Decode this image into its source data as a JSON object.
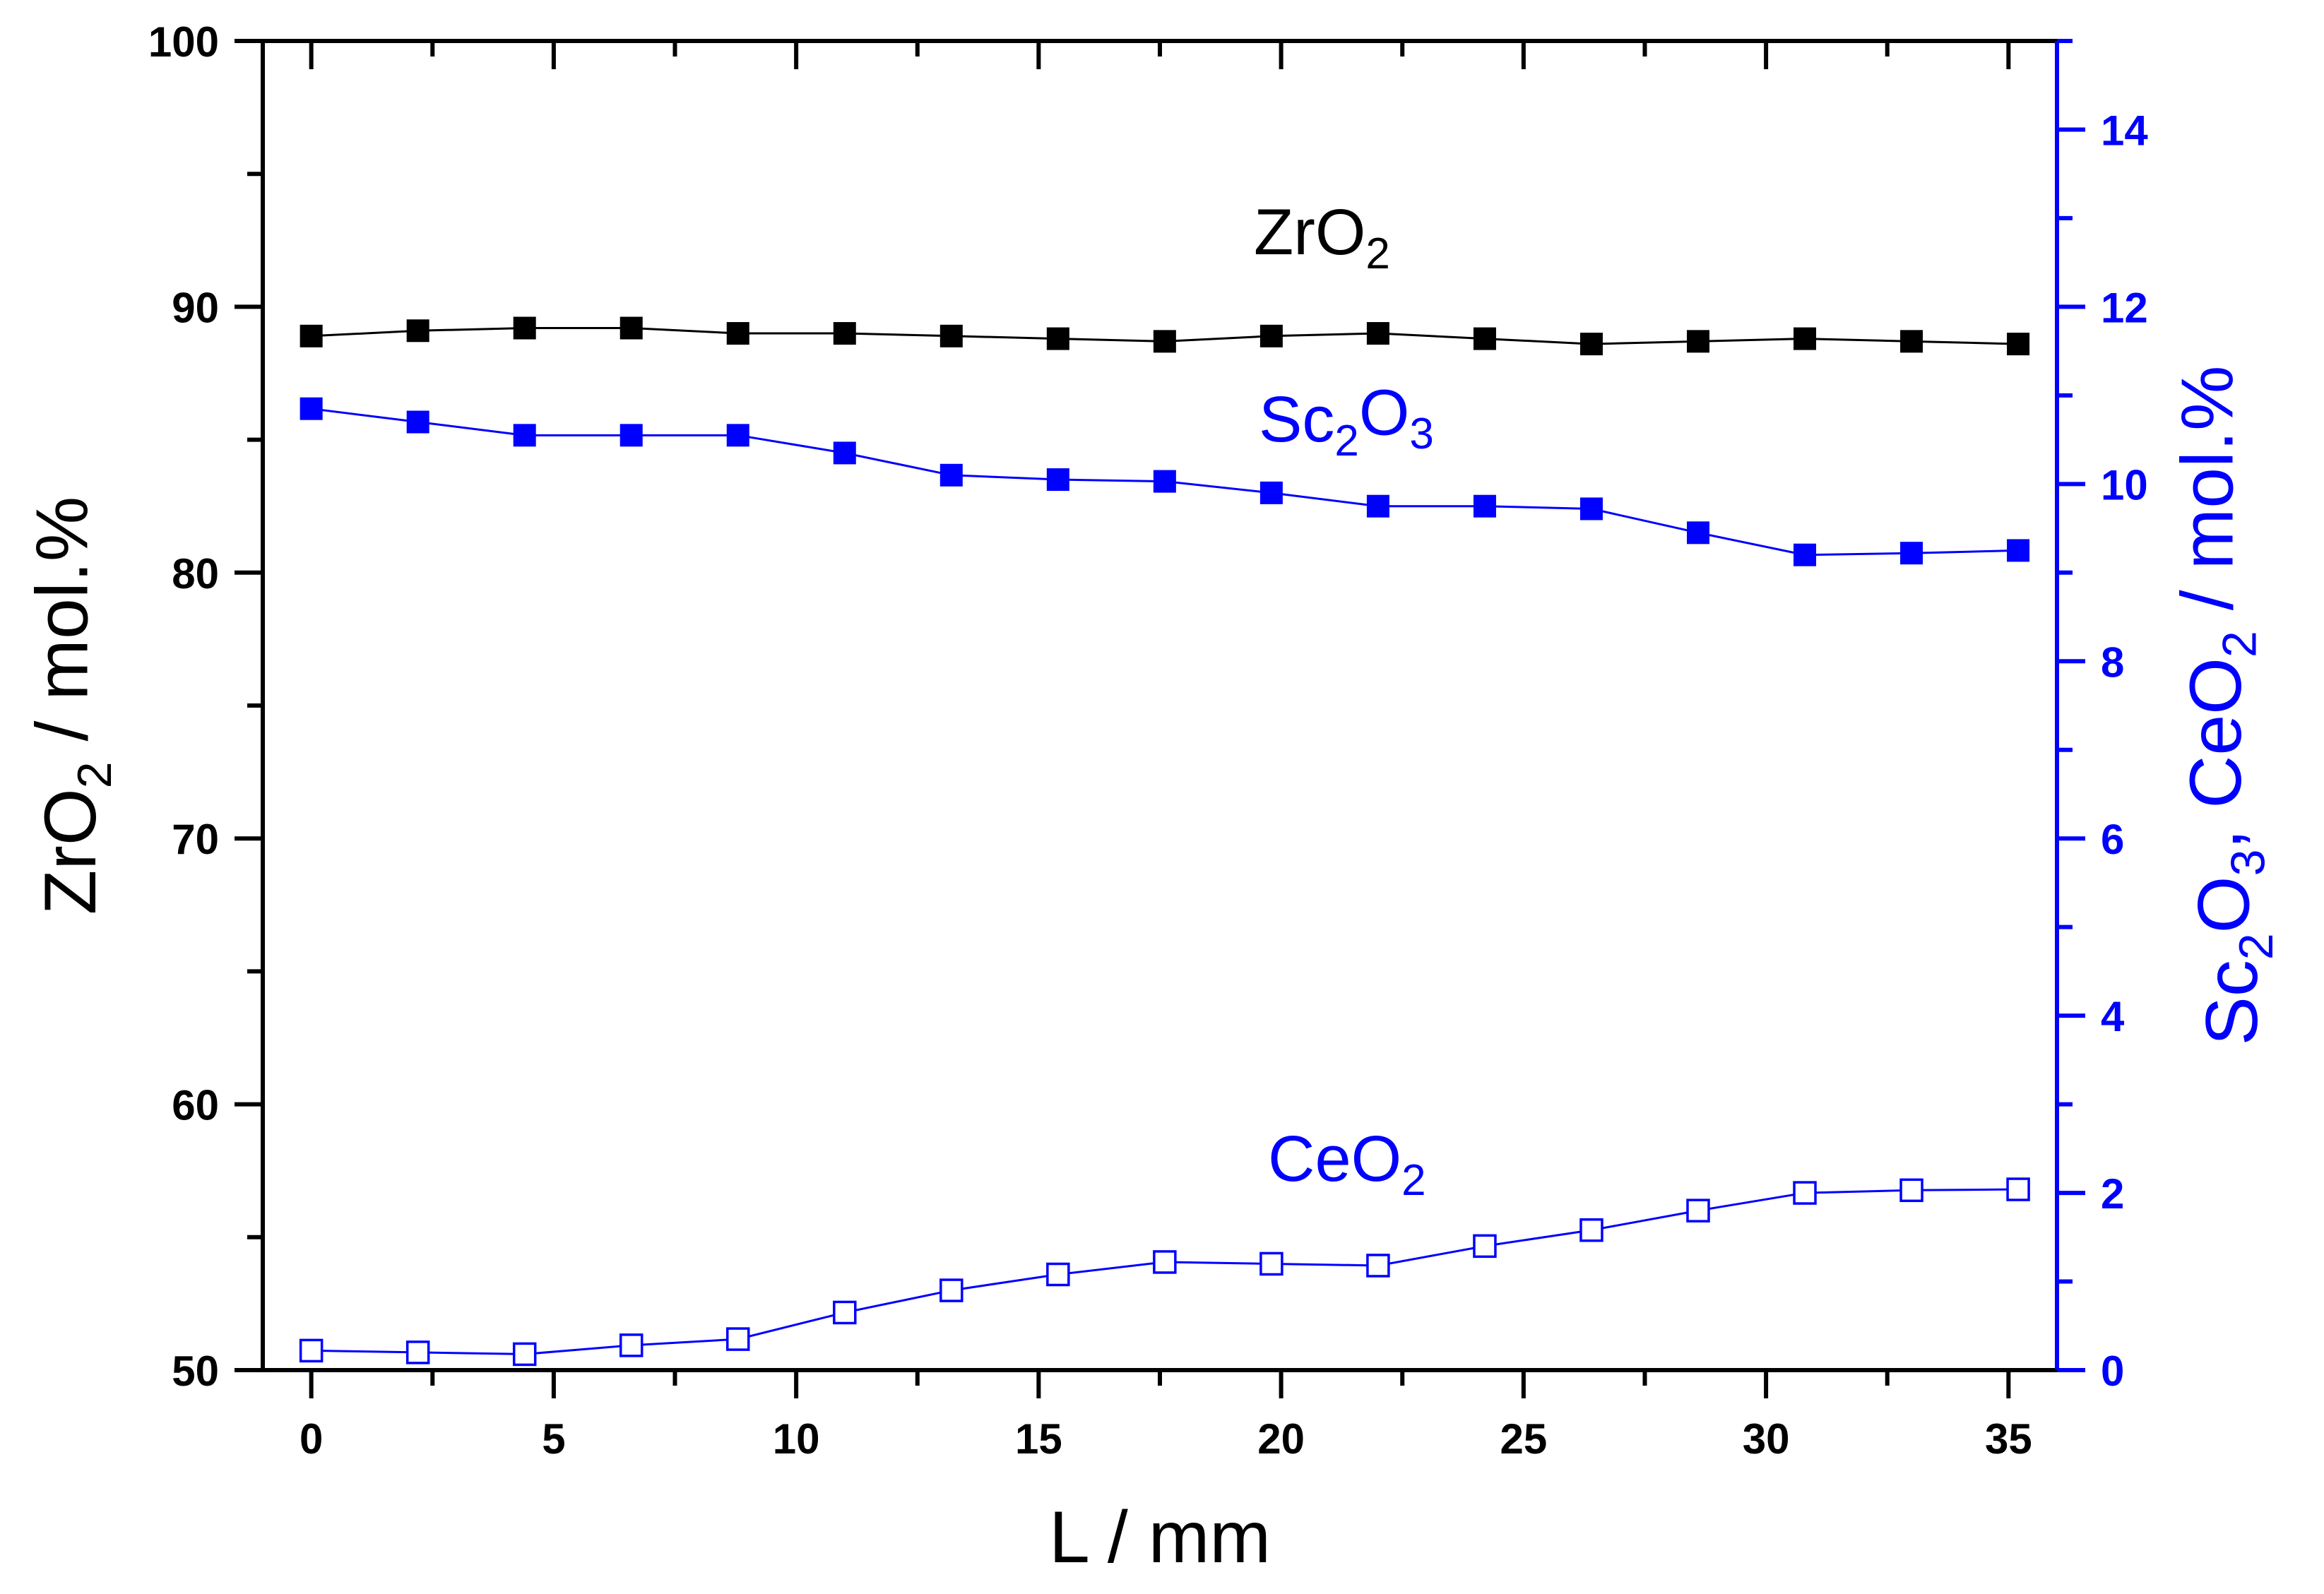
{
  "chart_data": {
    "type": "line",
    "title": "",
    "xlabel": "L / mm",
    "ylabel_left": {
      "parts": [
        {
          "t": "ZrO"
        },
        {
          "t": "2",
          "sub": true
        },
        {
          "t": " / mol.%"
        }
      ]
    },
    "ylabel_right": {
      "parts": [
        {
          "t": "Sc"
        },
        {
          "t": "2",
          "sub": true
        },
        {
          "t": "O"
        },
        {
          "t": "3",
          "sub": true
        },
        {
          "t": ", CeO"
        },
        {
          "t": "2",
          "sub": true
        },
        {
          "t": " / mol.%"
        }
      ]
    },
    "xlim": [
      -1,
      36
    ],
    "ylim_left": [
      50,
      100
    ],
    "ylim_right": [
      0,
      15
    ],
    "x_ticks": [
      0,
      5,
      10,
      15,
      20,
      25,
      30,
      35
    ],
    "y_left_ticks": [
      50,
      60,
      70,
      80,
      90,
      100
    ],
    "y_right_ticks": [
      0,
      2,
      4,
      6,
      8,
      10,
      12,
      14
    ],
    "x": [
      0,
      2.2,
      4.4,
      6.6,
      8.8,
      11.0,
      13.2,
      15.4,
      17.6,
      19.8,
      22.0,
      24.2,
      26.4,
      28.6,
      30.8,
      33.0,
      35.2
    ],
    "series": [
      {
        "name": "ZrO2",
        "label_parts": [
          {
            "t": "ZrO"
          },
          {
            "t": "2",
            "sub": true
          }
        ],
        "axis": "left",
        "color": "#000000",
        "marker": "filled-square",
        "values": [
          88.9,
          89.1,
          89.2,
          89.2,
          89.0,
          89.0,
          88.9,
          88.8,
          88.7,
          88.9,
          89.0,
          88.8,
          88.6,
          88.7,
          88.8,
          88.7,
          88.6
        ]
      },
      {
        "name": "Sc2O3",
        "label_parts": [
          {
            "t": "Sc"
          },
          {
            "t": "2",
            "sub": true
          },
          {
            "t": "O"
          },
          {
            "t": "3",
            "sub": true
          }
        ],
        "axis": "right",
        "color": "#0000FF",
        "marker": "filled-square",
        "values": [
          10.85,
          10.7,
          10.55,
          10.55,
          10.55,
          10.35,
          10.1,
          10.05,
          10.03,
          9.9,
          9.75,
          9.75,
          9.72,
          9.45,
          9.2,
          9.22,
          9.25
        ]
      },
      {
        "name": "CeO2",
        "label_parts": [
          {
            "t": "CeO"
          },
          {
            "t": "2",
            "sub": true
          }
        ],
        "axis": "right",
        "color": "#0000FF",
        "marker": "open-square",
        "values": [
          0.22,
          0.2,
          0.18,
          0.28,
          0.35,
          0.65,
          0.9,
          1.08,
          1.22,
          1.2,
          1.18,
          1.4,
          1.58,
          1.8,
          2.0,
          2.03,
          2.04
        ]
      }
    ]
  }
}
